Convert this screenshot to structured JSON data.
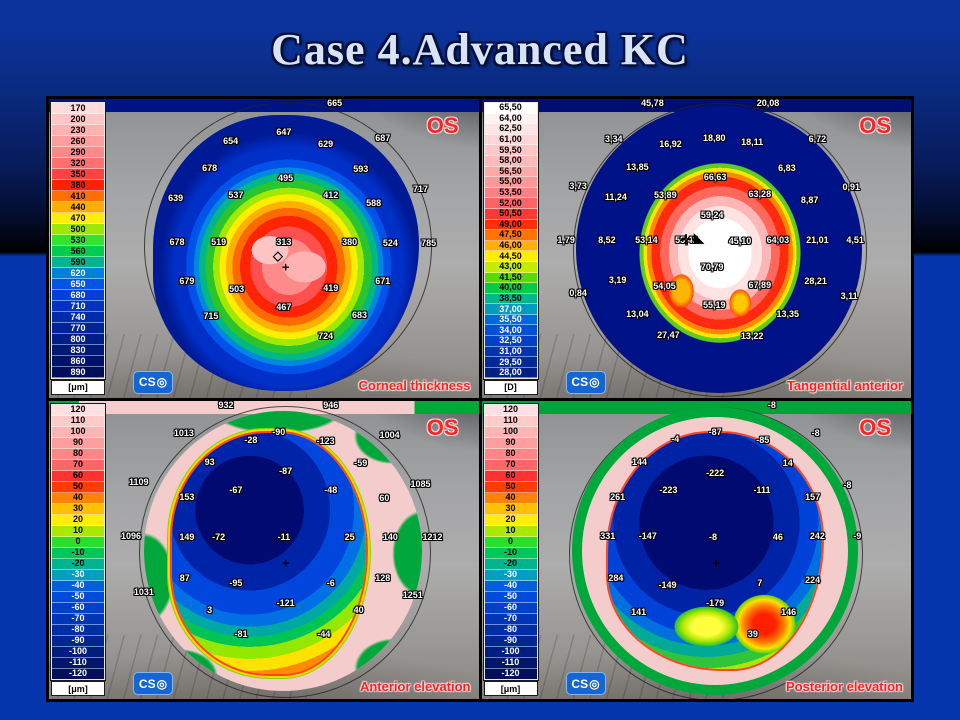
{
  "slide": {
    "title": "Case 4.Advanced KC"
  },
  "brand": {
    "logo_text": "CS",
    "logo_glyph": "◎",
    "os_color": "#ff2424",
    "caption_color": "#ff2020"
  },
  "panels": [
    {
      "id": "corneal-thickness",
      "eye": "OS",
      "caption": "Corneal thickness",
      "unit": "[μm]",
      "scale": [
        {
          "v": "170",
          "c": "#ffdcdc"
        },
        {
          "v": "200",
          "c": "#ffc6c6"
        },
        {
          "v": "230",
          "c": "#ffb2b2"
        },
        {
          "v": "260",
          "c": "#ff9e9e"
        },
        {
          "v": "290",
          "c": "#ff8888"
        },
        {
          "v": "320",
          "c": "#ff7070"
        },
        {
          "v": "350",
          "c": "#ff4242"
        },
        {
          "v": "380",
          "c": "#ff2200"
        },
        {
          "v": "410",
          "c": "#ff7000"
        },
        {
          "v": "440",
          "c": "#ffae00"
        },
        {
          "v": "470",
          "c": "#ffee00"
        },
        {
          "v": "500",
          "c": "#9ce800"
        },
        {
          "v": "530",
          "c": "#30e430"
        },
        {
          "v": "560",
          "c": "#00cc50"
        },
        {
          "v": "590",
          "c": "#00b490"
        },
        {
          "v": "620",
          "c": "#0080d8"
        },
        {
          "v": "650",
          "c": "#0055e8"
        },
        {
          "v": "680",
          "c": "#0040d8"
        },
        {
          "v": "710",
          "c": "#0034c0"
        },
        {
          "v": "740",
          "c": "#002cac"
        },
        {
          "v": "770",
          "c": "#002498"
        },
        {
          "v": "800",
          "c": "#001e88"
        },
        {
          "v": "830",
          "c": "#001878"
        },
        {
          "v": "860",
          "c": "#001268"
        },
        {
          "v": "890",
          "c": "#000d58"
        }
      ],
      "values": [
        {
          "t": "665",
          "x": 66.5,
          "y": 1.5
        },
        {
          "t": "647",
          "x": 54.7,
          "y": 11.2
        },
        {
          "t": "654",
          "x": 42.3,
          "y": 14.2
        },
        {
          "t": "629",
          "x": 64.4,
          "y": 15.2
        },
        {
          "t": "687",
          "x": 77.7,
          "y": 13.2
        },
        {
          "t": "678",
          "x": 37.4,
          "y": 23.1
        },
        {
          "t": "593",
          "x": 72.6,
          "y": 23.4
        },
        {
          "t": "495",
          "x": 55.1,
          "y": 26.4
        },
        {
          "t": "717",
          "x": 86.5,
          "y": 30.0
        },
        {
          "t": "639",
          "x": 29.5,
          "y": 33.3
        },
        {
          "t": "537",
          "x": 43.5,
          "y": 32.3
        },
        {
          "t": "412",
          "x": 65.6,
          "y": 32.3
        },
        {
          "t": "588",
          "x": 75.6,
          "y": 35.0
        },
        {
          "t": "678",
          "x": 29.8,
          "y": 47.9
        },
        {
          "t": "519",
          "x": 39.5,
          "y": 47.9
        },
        {
          "t": "313",
          "x": 54.7,
          "y": 47.9
        },
        {
          "t": "380",
          "x": 70.0,
          "y": 47.9
        },
        {
          "t": "524",
          "x": 79.5,
          "y": 48.2
        },
        {
          "t": "785",
          "x": 88.4,
          "y": 48.2
        },
        {
          "t": "679",
          "x": 32.1,
          "y": 61.1
        },
        {
          "t": "503",
          "x": 43.7,
          "y": 63.7
        },
        {
          "t": "419",
          "x": 65.6,
          "y": 63.4
        },
        {
          "t": "671",
          "x": 77.7,
          "y": 61.1
        },
        {
          "t": "467",
          "x": 54.7,
          "y": 69.6
        },
        {
          "t": "715",
          "x": 37.7,
          "y": 72.6
        },
        {
          "t": "683",
          "x": 72.3,
          "y": 72.3
        },
        {
          "t": "724",
          "x": 64.4,
          "y": 79.5
        }
      ],
      "markers": [
        {
          "g": "◇",
          "x": 53.3,
          "y": 52.5
        },
        {
          "g": "+",
          "x": 55.1,
          "y": 56.2
        }
      ]
    },
    {
      "id": "tangential-anterior",
      "eye": "OS",
      "caption": "Tangential anterior",
      "unit": "[D]",
      "scale": [
        {
          "v": "65,50",
          "c": "#ffffff"
        },
        {
          "v": "64,00",
          "c": "#fff2f2"
        },
        {
          "v": "62,50",
          "c": "#ffe4e4"
        },
        {
          "v": "61,00",
          "c": "#ffd6d6"
        },
        {
          "v": "59,50",
          "c": "#ffc8c8"
        },
        {
          "v": "58,00",
          "c": "#ffbaba"
        },
        {
          "v": "56,50",
          "c": "#ffaaaa"
        },
        {
          "v": "55,00",
          "c": "#ff9898"
        },
        {
          "v": "53,50",
          "c": "#ff8282"
        },
        {
          "v": "52,00",
          "c": "#ff6464"
        },
        {
          "v": "50,50",
          "c": "#ff3838"
        },
        {
          "v": "49,00",
          "c": "#ff3000"
        },
        {
          "v": "47,50",
          "c": "#ff7400"
        },
        {
          "v": "46,00",
          "c": "#ffb000"
        },
        {
          "v": "44,50",
          "c": "#ffee00"
        },
        {
          "v": "43,00",
          "c": "#c4ec00"
        },
        {
          "v": "41,50",
          "c": "#58dc00"
        },
        {
          "v": "40,00",
          "c": "#00cc44"
        },
        {
          "v": "38,50",
          "c": "#00b68c"
        },
        {
          "v": "37,00",
          "c": "#009cc0"
        },
        {
          "v": "35,50",
          "c": "#0068dc"
        },
        {
          "v": "34,00",
          "c": "#0050d4"
        },
        {
          "v": "32,50",
          "c": "#0040c4"
        },
        {
          "v": "31,00",
          "c": "#0034ae"
        },
        {
          "v": "29,50",
          "c": "#002a98"
        },
        {
          "v": "28,00",
          "c": "#002184"
        }
      ],
      "values": [
        {
          "t": "45,78",
          "x": 39.8,
          "y": 1.5
        },
        {
          "t": "20,08",
          "x": 66.7,
          "y": 1.5
        },
        {
          "t": "3,34",
          "x": 30.8,
          "y": 13.5
        },
        {
          "t": "16,92",
          "x": 44.0,
          "y": 15.2
        },
        {
          "t": "18,80",
          "x": 54.2,
          "y": 12.9
        },
        {
          "t": "18,11",
          "x": 63.0,
          "y": 14.5
        },
        {
          "t": "6,72",
          "x": 78.2,
          "y": 13.5
        },
        {
          "t": "13,85",
          "x": 36.3,
          "y": 22.8
        },
        {
          "t": "6,83",
          "x": 71.1,
          "y": 23.1
        },
        {
          "t": "3,73",
          "x": 22.5,
          "y": 29.0
        },
        {
          "t": "66,63",
          "x": 54.4,
          "y": 26.1
        },
        {
          "t": "0,91",
          "x": 86.1,
          "y": 29.4
        },
        {
          "t": "11,24",
          "x": 31.3,
          "y": 32.7
        },
        {
          "t": "53,89",
          "x": 42.8,
          "y": 32.0
        },
        {
          "t": "63,28",
          "x": 64.8,
          "y": 31.7
        },
        {
          "t": "8,87",
          "x": 76.4,
          "y": 34.0
        },
        {
          "t": "59,24",
          "x": 53.7,
          "y": 38.9
        },
        {
          "t": "1,79",
          "x": 19.7,
          "y": 47.2
        },
        {
          "t": "8,52",
          "x": 29.2,
          "y": 47.2
        },
        {
          "t": "53,14",
          "x": 38.4,
          "y": 47.2
        },
        {
          "t": "55,42",
          "x": 47.7,
          "y": 47.2
        },
        {
          "t": "45,10",
          "x": 60.2,
          "y": 47.5
        },
        {
          "t": "64,03",
          "x": 69.0,
          "y": 47.2
        },
        {
          "t": "21,01",
          "x": 78.2,
          "y": 47.2
        },
        {
          "t": "4,51",
          "x": 87.0,
          "y": 47.2
        },
        {
          "t": "70,79",
          "x": 53.7,
          "y": 56.4
        },
        {
          "t": "3,19",
          "x": 31.7,
          "y": 60.7
        },
        {
          "t": "54,05",
          "x": 42.6,
          "y": 62.7
        },
        {
          "t": "67,89",
          "x": 64.8,
          "y": 62.4
        },
        {
          "t": "28,21",
          "x": 77.8,
          "y": 61.1
        },
        {
          "t": "0,84",
          "x": 22.5,
          "y": 65.0
        },
        {
          "t": "3,11",
          "x": 85.6,
          "y": 66.0
        },
        {
          "t": "13,04",
          "x": 36.3,
          "y": 71.9
        },
        {
          "t": "55,19",
          "x": 54.2,
          "y": 69.0
        },
        {
          "t": "13,35",
          "x": 71.3,
          "y": 71.9
        },
        {
          "t": "27,47",
          "x": 43.5,
          "y": 79.2
        },
        {
          "t": "13,22",
          "x": 63.0,
          "y": 79.5
        }
      ],
      "markers": [
        {
          "g": "✛",
          "x": 47.6,
          "y": 47.3
        },
        {
          "g": "◣",
          "x": 50.6,
          "y": 46.6
        }
      ]
    },
    {
      "id": "anterior-elevation",
      "eye": "OS",
      "caption": "Anterior elevation",
      "unit": "[μm]",
      "scale": [
        {
          "v": "120",
          "c": "#ffe0e0"
        },
        {
          "v": "110",
          "c": "#ffcaca"
        },
        {
          "v": "100",
          "c": "#ffb4b4"
        },
        {
          "v": "90",
          "c": "#ff9e9e"
        },
        {
          "v": "80",
          "c": "#ff8686"
        },
        {
          "v": "70",
          "c": "#ff6666"
        },
        {
          "v": "60",
          "c": "#ff3232"
        },
        {
          "v": "50",
          "c": "#ff3c00"
        },
        {
          "v": "40",
          "c": "#ff8200"
        },
        {
          "v": "30",
          "c": "#ffc000"
        },
        {
          "v": "20",
          "c": "#ffee00"
        },
        {
          "v": "10",
          "c": "#aae800"
        },
        {
          "v": "0",
          "c": "#2ade2a"
        },
        {
          "v": "-10",
          "c": "#00c65a"
        },
        {
          "v": "-20",
          "c": "#00b490"
        },
        {
          "v": "-30",
          "c": "#009ec0"
        },
        {
          "v": "-40",
          "c": "#0060dc"
        },
        {
          "v": "-50",
          "c": "#004cd8"
        },
        {
          "v": "-60",
          "c": "#0040c8"
        },
        {
          "v": "-70",
          "c": "#0036b6"
        },
        {
          "v": "-80",
          "c": "#002ea4"
        },
        {
          "v": "-90",
          "c": "#002692"
        },
        {
          "v": "-100",
          "c": "#001e80"
        },
        {
          "v": "-110",
          "c": "#00166c"
        },
        {
          "v": "-120",
          "c": "#000f58"
        }
      ],
      "values": [
        {
          "t": "932",
          "x": 41.2,
          "y": 1.5
        },
        {
          "t": "946",
          "x": 65.6,
          "y": 1.5
        },
        {
          "t": "1013",
          "x": 31.4,
          "y": 11.0
        },
        {
          "t": "-28",
          "x": 47.0,
          "y": 13.3
        },
        {
          "t": "-90",
          "x": 53.5,
          "y": 10.7
        },
        {
          "t": "-123",
          "x": 64.4,
          "y": 13.7
        },
        {
          "t": "1004",
          "x": 79.3,
          "y": 11.7
        },
        {
          "t": "93",
          "x": 37.4,
          "y": 20.7
        },
        {
          "t": "-59",
          "x": 72.6,
          "y": 21.0
        },
        {
          "t": "-87",
          "x": 55.1,
          "y": 23.7
        },
        {
          "t": "1109",
          "x": 20.9,
          "y": 27.3
        },
        {
          "t": "1085",
          "x": 86.5,
          "y": 28.0
        },
        {
          "t": "153",
          "x": 32.1,
          "y": 32.3
        },
        {
          "t": "-67",
          "x": 43.5,
          "y": 30.0
        },
        {
          "t": "-48",
          "x": 65.6,
          "y": 30.0
        },
        {
          "t": "60",
          "x": 78.1,
          "y": 32.7
        },
        {
          "t": "1096",
          "x": 19.1,
          "y": 45.3
        },
        {
          "t": "149",
          "x": 32.1,
          "y": 45.7
        },
        {
          "t": "-72",
          "x": 39.5,
          "y": 45.7
        },
        {
          "t": "-11",
          "x": 54.7,
          "y": 45.7
        },
        {
          "t": "25",
          "x": 70.0,
          "y": 45.7
        },
        {
          "t": "140",
          "x": 79.5,
          "y": 45.7
        },
        {
          "t": "1212",
          "x": 89.3,
          "y": 45.7
        },
        {
          "t": "87",
          "x": 31.6,
          "y": 59.3
        },
        {
          "t": "-95",
          "x": 43.5,
          "y": 61.3
        },
        {
          "t": "-6",
          "x": 65.6,
          "y": 61.3
        },
        {
          "t": "128",
          "x": 77.7,
          "y": 59.3
        },
        {
          "t": "1031",
          "x": 22.1,
          "y": 64.3
        },
        {
          "t": "-121",
          "x": 55.1,
          "y": 67.7
        },
        {
          "t": "1251",
          "x": 84.7,
          "y": 65.0
        },
        {
          "t": "3",
          "x": 37.4,
          "y": 70.3
        },
        {
          "t": "40",
          "x": 72.1,
          "y": 70.3
        },
        {
          "t": "-81",
          "x": 44.7,
          "y": 78.3
        },
        {
          "t": "-44",
          "x": 64.0,
          "y": 78.3
        }
      ],
      "markers": [
        {
          "g": "+",
          "x": 55.1,
          "y": 54.3
        }
      ]
    },
    {
      "id": "posterior-elevation",
      "eye": "OS",
      "caption": "Posterior elevation",
      "unit": "[μm]",
      "scale": [
        {
          "v": "120",
          "c": "#ffe0e0"
        },
        {
          "v": "110",
          "c": "#ffcaca"
        },
        {
          "v": "100",
          "c": "#ffb4b4"
        },
        {
          "v": "90",
          "c": "#ff9e9e"
        },
        {
          "v": "80",
          "c": "#ff8686"
        },
        {
          "v": "70",
          "c": "#ff6666"
        },
        {
          "v": "60",
          "c": "#ff3232"
        },
        {
          "v": "50",
          "c": "#ff3c00"
        },
        {
          "v": "40",
          "c": "#ff8200"
        },
        {
          "v": "30",
          "c": "#ffc000"
        },
        {
          "v": "20",
          "c": "#ffee00"
        },
        {
          "v": "10",
          "c": "#aae800"
        },
        {
          "v": "0",
          "c": "#2ade2a"
        },
        {
          "v": "-10",
          "c": "#00c65a"
        },
        {
          "v": "-20",
          "c": "#00b490"
        },
        {
          "v": "-30",
          "c": "#009ec0"
        },
        {
          "v": "-40",
          "c": "#0060dc"
        },
        {
          "v": "-50",
          "c": "#004cd8"
        },
        {
          "v": "-60",
          "c": "#0040c8"
        },
        {
          "v": "-70",
          "c": "#0036b6"
        },
        {
          "v": "-80",
          "c": "#002ea4"
        },
        {
          "v": "-90",
          "c": "#002692"
        },
        {
          "v": "-100",
          "c": "#001e80"
        },
        {
          "v": "-110",
          "c": "#00166c"
        },
        {
          "v": "-120",
          "c": "#000f58"
        }
      ],
      "values": [
        {
          "t": "-8",
          "x": 67.6,
          "y": 1.5
        },
        {
          "t": "-4",
          "x": 45.1,
          "y": 13.0
        },
        {
          "t": "-87",
          "x": 54.4,
          "y": 10.7
        },
        {
          "t": "-85",
          "x": 65.5,
          "y": 13.3
        },
        {
          "t": "-8",
          "x": 77.8,
          "y": 11.0
        },
        {
          "t": "144",
          "x": 36.8,
          "y": 20.7
        },
        {
          "t": "14",
          "x": 71.3,
          "y": 21.0
        },
        {
          "t": "-222",
          "x": 54.4,
          "y": 24.3
        },
        {
          "t": "-8",
          "x": 85.2,
          "y": 28.3
        },
        {
          "t": "261",
          "x": 31.7,
          "y": 32.3
        },
        {
          "t": "-223",
          "x": 43.5,
          "y": 30.0
        },
        {
          "t": "-111",
          "x": 65.3,
          "y": 30.0
        },
        {
          "t": "157",
          "x": 77.1,
          "y": 32.3
        },
        {
          "t": "331",
          "x": 29.4,
          "y": 45.3
        },
        {
          "t": "-147",
          "x": 38.7,
          "y": 45.3
        },
        {
          "t": "-8",
          "x": 53.9,
          "y": 45.7
        },
        {
          "t": "46",
          "x": 69.0,
          "y": 45.7
        },
        {
          "t": "242",
          "x": 78.2,
          "y": 45.3
        },
        {
          "t": "-9",
          "x": 87.5,
          "y": 45.3
        },
        {
          "t": "284",
          "x": 31.3,
          "y": 59.3
        },
        {
          "t": "-149",
          "x": 43.3,
          "y": 61.7
        },
        {
          "t": "7",
          "x": 64.8,
          "y": 61.0
        },
        {
          "t": "224",
          "x": 77.1,
          "y": 60.0
        },
        {
          "t": "-179",
          "x": 54.4,
          "y": 67.7
        },
        {
          "t": "141",
          "x": 36.6,
          "y": 70.7
        },
        {
          "t": "146",
          "x": 71.5,
          "y": 70.7
        },
        {
          "t": "39",
          "x": 63.2,
          "y": 78.3
        }
      ],
      "markers": [
        {
          "g": "+",
          "x": 54.6,
          "y": 54.3
        }
      ]
    }
  ]
}
